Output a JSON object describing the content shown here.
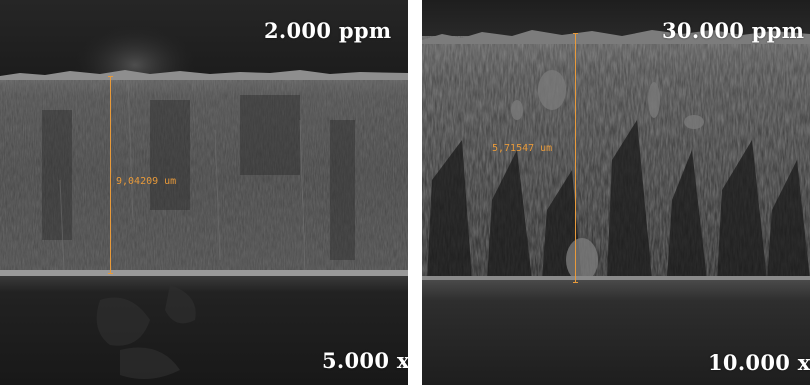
{
  "panels": [
    {
      "concentration": "2.000 ppm",
      "magnification": "5.000 x",
      "measurement": "9,04209 um"
    },
    {
      "concentration": "30.000 ppm",
      "magnification": "10.000 x",
      "measurement": "5,71547 um"
    }
  ],
  "colors": {
    "measure_line": "#e89a3a",
    "label_text": "#ffffff",
    "background": "#ffffff"
  }
}
